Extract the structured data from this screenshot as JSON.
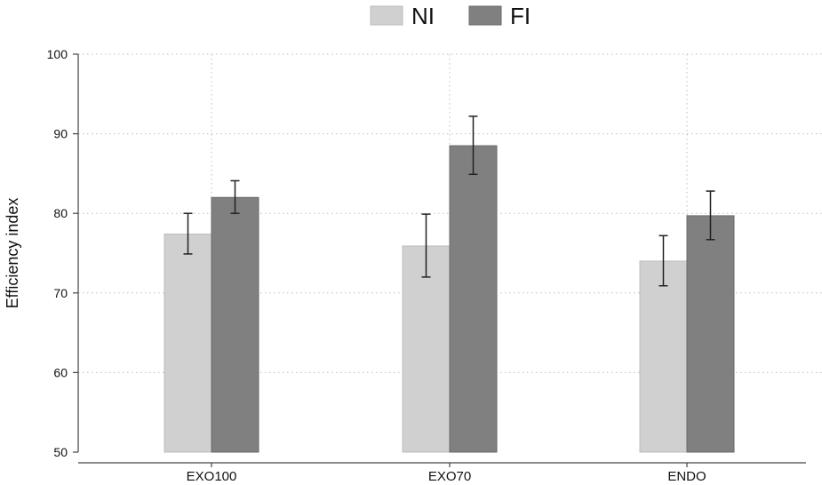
{
  "chart_data": {
    "type": "bar",
    "ylabel": "Efficiency index",
    "ylim": [
      50,
      100
    ],
    "yticks": [
      50,
      60,
      70,
      80,
      90,
      100
    ],
    "grid": true,
    "legend_position": "top-center",
    "categories": [
      "EXO100",
      "EXO70",
      "ENDO"
    ],
    "series": [
      {
        "name": "NI",
        "color": "#d0d0d0",
        "values": [
          77.4,
          75.9,
          74.0
        ],
        "error_low": [
          74.9,
          72.0,
          70.9
        ],
        "error_high": [
          80.0,
          79.9,
          77.2
        ]
      },
      {
        "name": "FI",
        "color": "#808080",
        "values": [
          82.0,
          88.5,
          79.7
        ],
        "error_low": [
          80.0,
          84.9,
          76.7
        ],
        "error_high": [
          84.1,
          92.2,
          82.8
        ]
      }
    ]
  }
}
